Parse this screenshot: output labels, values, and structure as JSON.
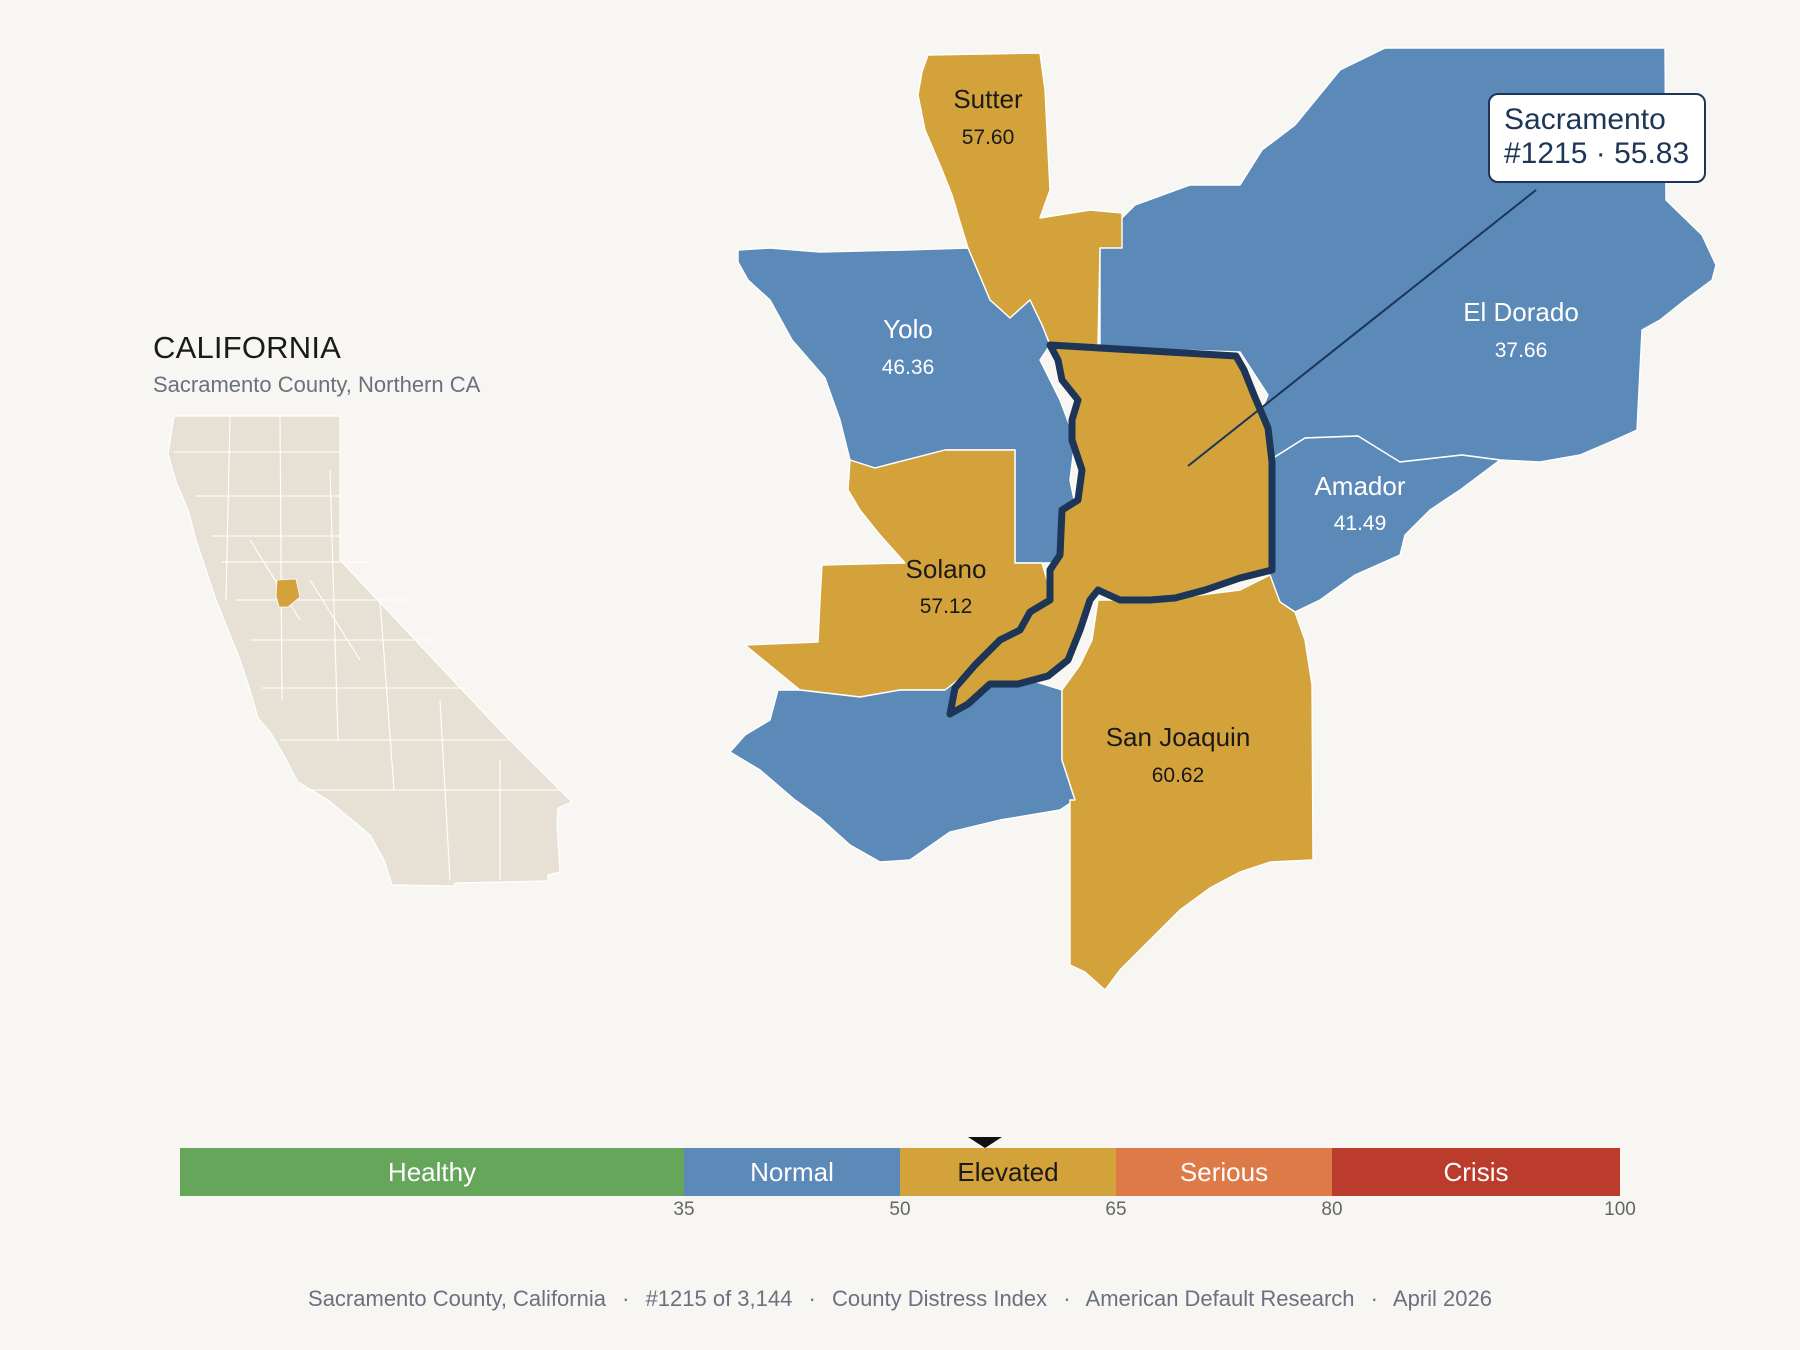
{
  "inset": {
    "title": "CALIFORNIA",
    "subtitle": "Sacramento County, Northern CA"
  },
  "colors": {
    "healthy": "#66a65a",
    "normal": "#5b89b8",
    "elevated": "#d3a23a",
    "serious": "#de7a48",
    "crisis": "#bb3b2d",
    "highlight_border": "#1d3557",
    "state_fill": "#e7e1d5",
    "background": "#f8f6f2"
  },
  "counties": {
    "sutter": {
      "name": "Sutter",
      "score": "57.60",
      "category": "Elevated"
    },
    "yolo": {
      "name": "Yolo",
      "score": "46.36",
      "category": "Normal"
    },
    "solano": {
      "name": "Solano",
      "score": "57.12",
      "category": "Elevated"
    },
    "el_dorado": {
      "name": "El Dorado",
      "score": "37.66",
      "category": "Normal"
    },
    "amador": {
      "name": "Amador",
      "score": "41.49",
      "category": "Normal"
    },
    "san_joaquin": {
      "name": "San Joaquin",
      "score": "60.62",
      "category": "Elevated"
    },
    "sacramento": {
      "name": "Sacramento",
      "score": "55.83",
      "category": "Elevated"
    }
  },
  "callout": {
    "line1": "Sacramento",
    "line2": "#1215 · 55.83"
  },
  "scale": {
    "bands": [
      {
        "label": "Healthy",
        "from": 0,
        "to": 35
      },
      {
        "label": "Normal",
        "from": 35,
        "to": 50
      },
      {
        "label": "Elevated",
        "from": 50,
        "to": 65
      },
      {
        "label": "Serious",
        "from": 65,
        "to": 80
      },
      {
        "label": "Crisis",
        "from": 80,
        "to": 100
      }
    ],
    "ticks": [
      "35",
      "50",
      "65",
      "80",
      "100"
    ],
    "current_value": 55.83
  },
  "footer": {
    "county": "Sacramento County, California",
    "rank": "#1215 of 3,144",
    "index": "County Distress Index",
    "source": "American Default Research",
    "date": "April 2026",
    "separator": "·"
  }
}
